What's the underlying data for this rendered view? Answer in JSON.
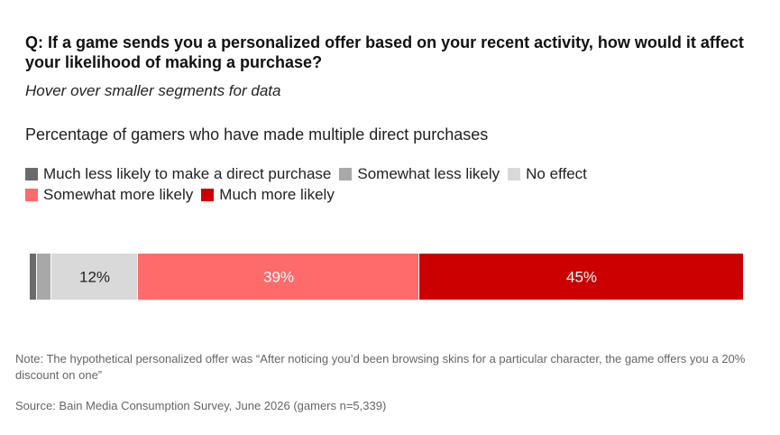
{
  "question": "Q: If a game sends you a personalized offer based on your recent activity, how would it affect your likelihood of making a purchase?",
  "subtitle": "Hover over smaller segments for data",
  "chart_data": {
    "type": "bar",
    "orientation": "horizontal",
    "stacked": true,
    "title": "Percentage of gamers who have made multiple direct purchases",
    "xlim": [
      0,
      100
    ],
    "grid": false,
    "legend_placement": "top-left",
    "categories": [
      ""
    ],
    "series": [
      {
        "name": "Much less likely to make a direct purchase",
        "color": "#6b6b6b",
        "values": [
          1
        ],
        "label": ""
      },
      {
        "name": "Somewhat less likely",
        "color": "#a8a8a8",
        "values": [
          2
        ],
        "label": ""
      },
      {
        "name": "No effect",
        "color": "#d9d9d9",
        "values": [
          12
        ],
        "label": "12%",
        "label_color": "#222222"
      },
      {
        "name": "Somewhat more likely",
        "color": "#ff6a6a",
        "values": [
          39
        ],
        "label": "39%",
        "label_color": "#ffffff"
      },
      {
        "name": "Much more likely",
        "color": "#cc0000",
        "values": [
          45
        ],
        "label": "45%",
        "label_color": "#ffffff"
      }
    ]
  },
  "note": "Note: The hypothetical personalized offer was “After noticing you’d been browsing skins for a particular character, the game offers you a 20% discount on one”",
  "source": "Source: Bain Media Consumption Survey, June 2026 (gamers n=5,339)"
}
